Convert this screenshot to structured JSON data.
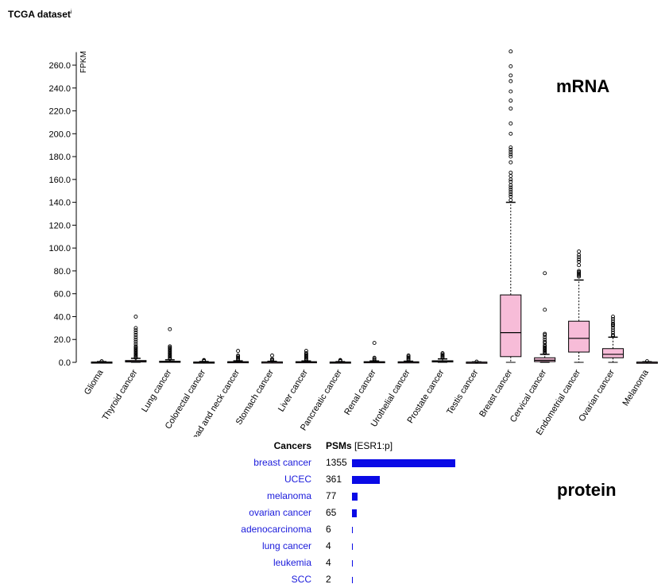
{
  "title": "TCGA dataset",
  "title_sup": "i",
  "labels": {
    "mrna": "mRNA",
    "protein": "protein"
  },
  "colors": {
    "box_fill": "#f7bcd8",
    "bar": "#0a0ae6",
    "link": "#1a1adb"
  },
  "chart_data": {
    "type": "box",
    "ylabel": "FPKM",
    "ylim": [
      0,
      270
    ],
    "yticks": [
      0,
      20,
      40,
      60,
      80,
      100,
      120,
      140,
      160,
      180,
      200,
      220,
      240,
      260
    ],
    "ytick_labels": [
      "0.0",
      "20.0",
      "40.0",
      "60.0",
      "80.0",
      "100.0",
      "120.0",
      "140.0",
      "160.0",
      "180.0",
      "200.0",
      "220.0",
      "240.0",
      "260.0"
    ],
    "categories": [
      "Glioma",
      "Thyroid cancer",
      "Lung cancer",
      "Colorectal cancer",
      "Head and neck cancer",
      "Stomach cancer",
      "Liver cancer",
      "Pancreatic cancer",
      "Renal cancer",
      "Urothelial cancer",
      "Prostate cancer",
      "Testis cancer",
      "Breast cancer",
      "Cervical cancer",
      "Endometrial cancer",
      "Ovarian cancer",
      "Melanoma"
    ],
    "boxes": [
      {
        "min": 0,
        "q1": 0,
        "median": 0.1,
        "q3": 0.3,
        "max": 0.6,
        "outliers": [
          0.8,
          1.0
        ]
      },
      {
        "min": 0,
        "q1": 0.3,
        "median": 0.8,
        "q3": 1.6,
        "max": 3.5,
        "outliers": [
          4,
          5,
          6,
          7,
          8,
          9,
          10,
          11,
          12,
          13,
          14,
          16,
          18,
          20,
          22,
          24,
          26,
          28,
          30,
          40
        ]
      },
      {
        "min": 0,
        "q1": 0.2,
        "median": 0.5,
        "q3": 1.0,
        "max": 2.2,
        "outliers": [
          3,
          4,
          5,
          6,
          7,
          8,
          9,
          10,
          11,
          12,
          13,
          14,
          29
        ]
      },
      {
        "min": 0,
        "q1": 0,
        "median": 0.1,
        "q3": 0.3,
        "max": 0.7,
        "outliers": [
          1,
          1.5,
          2
        ]
      },
      {
        "min": 0,
        "q1": 0.1,
        "median": 0.3,
        "q3": 0.6,
        "max": 1.3,
        "outliers": [
          2,
          3,
          4,
          5,
          6,
          10
        ]
      },
      {
        "min": 0,
        "q1": 0,
        "median": 0.2,
        "q3": 0.4,
        "max": 0.9,
        "outliers": [
          1.5,
          2,
          3,
          6
        ]
      },
      {
        "min": 0,
        "q1": 0.1,
        "median": 0.3,
        "q3": 0.6,
        "max": 1.2,
        "outliers": [
          2,
          3,
          4,
          5,
          6,
          7,
          8,
          10
        ]
      },
      {
        "min": 0,
        "q1": 0,
        "median": 0.1,
        "q3": 0.3,
        "max": 0.6,
        "outliers": [
          1,
          1.5,
          2
        ]
      },
      {
        "min": 0,
        "q1": 0.1,
        "median": 0.3,
        "q3": 0.6,
        "max": 1.2,
        "outliers": [
          2,
          3,
          4,
          17
        ]
      },
      {
        "min": 0,
        "q1": 0.1,
        "median": 0.2,
        "q3": 0.5,
        "max": 1.0,
        "outliers": [
          2,
          3,
          4,
          5,
          6
        ]
      },
      {
        "min": 0,
        "q1": 0.3,
        "median": 0.7,
        "q3": 1.4,
        "max": 3,
        "outliers": [
          4,
          5,
          6,
          7,
          8
        ]
      },
      {
        "min": 0,
        "q1": 0,
        "median": 0.1,
        "q3": 0.2,
        "max": 0.4,
        "outliers": [
          0.6
        ]
      },
      {
        "min": 0,
        "q1": 5,
        "median": 26,
        "q3": 59,
        "max": 140,
        "outliers": [
          142,
          145,
          147,
          149,
          151,
          153,
          155,
          158,
          160,
          163,
          166,
          175,
          180,
          182,
          184,
          186,
          188,
          200,
          209,
          222,
          229,
          237,
          246,
          251,
          259,
          272
        ]
      },
      {
        "min": 0,
        "q1": 0.6,
        "median": 1.8,
        "q3": 4,
        "max": 7,
        "outliers": [
          8,
          9,
          10,
          11,
          12,
          13,
          14,
          15,
          17,
          18,
          20,
          22,
          24,
          25,
          46,
          78
        ]
      },
      {
        "min": 0,
        "q1": 9,
        "median": 21,
        "q3": 36,
        "max": 72,
        "outliers": [
          75,
          76,
          77,
          78,
          79,
          80,
          85,
          88,
          90,
          92,
          94,
          97
        ]
      },
      {
        "min": 0,
        "q1": 4,
        "median": 7,
        "q3": 12,
        "max": 22,
        "outliers": [
          23,
          24,
          26,
          28,
          30,
          32,
          33,
          34,
          36,
          38,
          40
        ]
      },
      {
        "min": 0,
        "q1": 0,
        "median": 0.1,
        "q3": 0.2,
        "max": 0.5,
        "outliers": [
          1
        ]
      }
    ]
  },
  "protein_table": {
    "headers": [
      "Cancers",
      "PSMs",
      "[ESR1:p]"
    ],
    "max_value": 1355,
    "rows": [
      {
        "name": "breast cancer",
        "value": 1355,
        "link": true
      },
      {
        "name": "UCEC",
        "value": 361,
        "link": true
      },
      {
        "name": "melanoma",
        "value": 77,
        "link": true
      },
      {
        "name": "ovarian cancer",
        "value": 65,
        "link": true
      },
      {
        "name": "adenocarcinoma",
        "value": 6,
        "link": true
      },
      {
        "name": "lung cancer",
        "value": 4,
        "link": true
      },
      {
        "name": "leukemia",
        "value": 4,
        "link": true
      },
      {
        "name": "SCC",
        "value": 2,
        "link": true
      }
    ]
  }
}
